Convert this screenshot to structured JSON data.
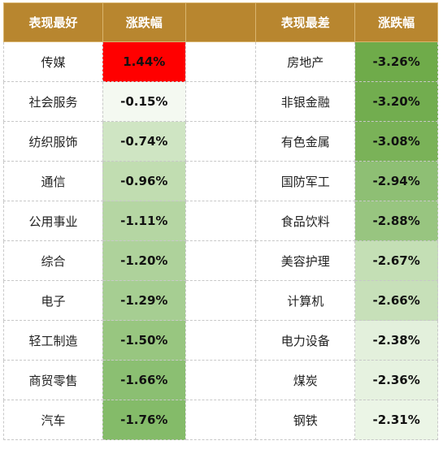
{
  "header": {
    "best_title": "表现最好",
    "change_title": "涨跌幅",
    "worst_title": "表现最差",
    "change_title_2": "涨跌幅"
  },
  "best": [
    {
      "name": "传媒",
      "change": "1.44%",
      "color": "#ff0000"
    },
    {
      "name": "社会服务",
      "change": "-0.15%",
      "color": "#f4f9f1"
    },
    {
      "name": "纺织服饰",
      "change": "-0.74%",
      "color": "#cfe5c3"
    },
    {
      "name": "通信",
      "change": "-0.96%",
      "color": "#c1ddb1"
    },
    {
      "name": "公用事业",
      "change": "-1.11%",
      "color": "#b5d6a3"
    },
    {
      "name": "综合",
      "change": "-1.20%",
      "color": "#aed29b"
    },
    {
      "name": "电子",
      "change": "-1.29%",
      "color": "#a6ce92"
    },
    {
      "name": "轻工制造",
      "change": "-1.50%",
      "color": "#98c680"
    },
    {
      "name": "商贸零售",
      "change": "-1.66%",
      "color": "#8bbf72"
    },
    {
      "name": "汽车",
      "change": "-1.76%",
      "color": "#84bb69"
    }
  ],
  "worst": [
    {
      "name": "房地产",
      "change": "-3.26%",
      "color": "#6fab4a"
    },
    {
      "name": "非银金融",
      "change": "-3.20%",
      "color": "#72ad4f"
    },
    {
      "name": "有色金属",
      "change": "-3.08%",
      "color": "#7ab258"
    },
    {
      "name": "国防军工",
      "change": "-2.94%",
      "color": "#8ebf74"
    },
    {
      "name": "食品饮料",
      "change": "-2.88%",
      "color": "#98c580"
    },
    {
      "name": "美容护理",
      "change": "-2.67%",
      "color": "#c4dfb5"
    },
    {
      "name": "计算机",
      "change": "-2.66%",
      "color": "#c7e0b9"
    },
    {
      "name": "电力设备",
      "change": "-2.38%",
      "color": "#e3f0dc"
    },
    {
      "name": "煤炭",
      "change": "-2.36%",
      "color": "#e6f2e0"
    },
    {
      "name": "钢铁",
      "change": "-2.31%",
      "color": "#ebf5e6"
    }
  ]
}
